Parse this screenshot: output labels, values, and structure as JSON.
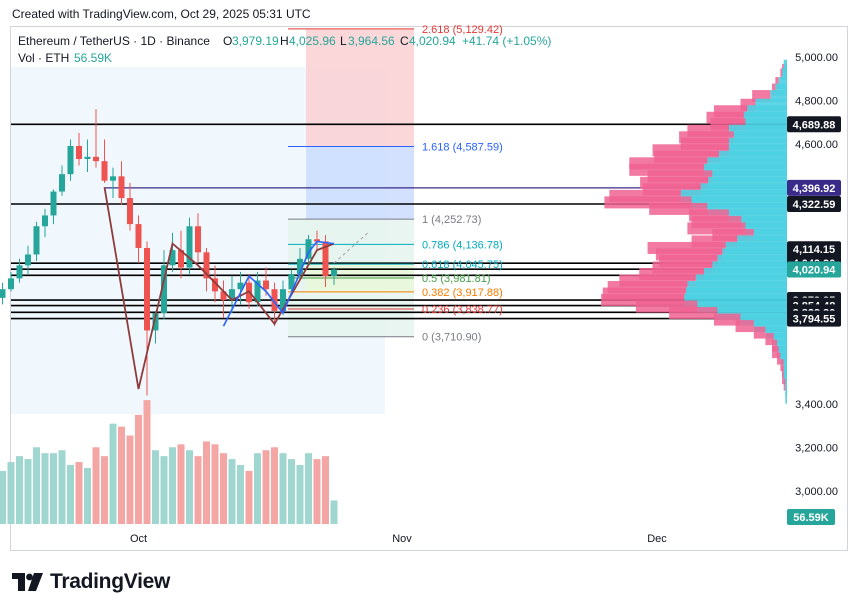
{
  "header": {
    "created": "Created with TradingView.com, Oct 29, 2025 05:31 UTC",
    "symbol": "Ethereum / TetherUS · 1D · Binance",
    "o_label": "O",
    "o_value": "3,979.19",
    "h_label": "H",
    "h_value": "4,025.96",
    "l_label": "L",
    "l_value": "3,964.56",
    "c_label": "C",
    "c_value": "4,020.94",
    "change": "+41.74 (+1.05%)",
    "vol_label": "Vol · ETH",
    "vol_value": "56.59K"
  },
  "brand": {
    "name": "TradingView"
  },
  "colors": {
    "up": "#26a69a",
    "down": "#ef5350",
    "vol_up": "#9fd6cf",
    "vol_down": "#f4a6a5",
    "vp_cyan": "#4dd0e1",
    "vp_pink": "#f06292",
    "fib_blue": "#2962ff",
    "fib_teal": "#00acc1",
    "fib_green": "#43a047",
    "fib_orange": "#f57c00",
    "fib_red": "#e53935",
    "fib_gray": "#787b86"
  },
  "chart_data": {
    "type": "candlestick",
    "y_range": [
      3140,
      5110
    ],
    "volume_range": [
      0,
      400
    ],
    "x_ticks": [
      {
        "label": "Oct",
        "day": 31
      },
      {
        "label": "Nov",
        "day": 62
      },
      {
        "label": "Dec",
        "day": 92
      }
    ],
    "y_ticks": [
      "5,000.00",
      "4,800.00",
      "4,600.00",
      "3,400.00",
      "3,200.00",
      "3,000.00"
    ],
    "y_tick_values": [
      5000,
      4800,
      4600,
      3400,
      3200,
      3000
    ],
    "price_labels": [
      {
        "label": "4,689.88",
        "value": 4689.88,
        "style": "dark"
      },
      {
        "label": "4,396.92",
        "value": 4396.92,
        "style": "navy"
      },
      {
        "label": "4,322.59",
        "value": 4322.59,
        "style": "dark"
      },
      {
        "label": "4,114.15",
        "value": 4114.15,
        "style": "dark"
      },
      {
        "label": "4,049.90",
        "value": 4049.9,
        "style": "dark"
      },
      {
        "label": "4,022.08",
        "value": 4022.08,
        "style": "dark"
      },
      {
        "label": "4,020.94",
        "value": 4020.94,
        "style": "green"
      },
      {
        "label": "3,879.95",
        "value": 3879.95,
        "style": "dark"
      },
      {
        "label": "3,854.48",
        "value": 3854.48,
        "style": "dark"
      },
      {
        "label": "3,823.30",
        "value": 3823.3,
        "style": "dark"
      },
      {
        "label": "3,794.55",
        "value": 3794.55,
        "style": "dark"
      }
    ],
    "volume_label": "56.59K",
    "horizontal_levels": [
      4689.88,
      4322.59,
      4049.9,
      4022.08,
      3994.0,
      3879.95,
      3854.48,
      3823.3,
      3794.55
    ],
    "navy_line": {
      "value": 4396.92,
      "from_day": 27
    },
    "fib_levels": [
      {
        "ratio": "2.618",
        "value": "5,129.42",
        "v": 5129.42,
        "color": "fib_red"
      },
      {
        "ratio": "1.618",
        "value": "4,587.59",
        "v": 4587.59,
        "color": "fib_blue"
      },
      {
        "ratio": "1",
        "value": "4,252.73",
        "v": 4252.73,
        "color": "fib_gray"
      },
      {
        "ratio": "0.786",
        "value": "4,136.78",
        "v": 4136.78,
        "color": "fib_teal"
      },
      {
        "ratio": "0.618",
        "value": "4,045.75",
        "v": 4045.75,
        "color": "fib_teal"
      },
      {
        "ratio": "0.5",
        "value": "3,981.81",
        "v": 3981.81,
        "color": "fib_green"
      },
      {
        "ratio": "0.382",
        "value": "3,917.88",
        "v": 3917.88,
        "color": "fib_orange"
      },
      {
        "ratio": "0.236",
        "value": "3,838.77",
        "v": 3838.77,
        "color": "fib_red"
      },
      {
        "ratio": "0",
        "value": "3,710.90",
        "v": 3710.9,
        "color": "fib_gray"
      }
    ],
    "candles": [
      [
        4370,
        4450,
        4320,
        4420
      ],
      [
        4420,
        4470,
        4360,
        4380
      ],
      [
        4380,
        4430,
        4340,
        4400
      ],
      [
        4400,
        4500,
        4370,
        4460
      ],
      [
        4460,
        4520,
        4410,
        4430
      ],
      [
        4430,
        4490,
        4380,
        4470
      ],
      [
        4470,
        4480,
        4340,
        4360
      ],
      [
        4360,
        4390,
        4270,
        4300
      ],
      [
        4300,
        4330,
        3990,
        4080
      ],
      [
        4080,
        4130,
        4000,
        4060
      ],
      [
        4060,
        4100,
        3980,
        4020
      ],
      [
        4020,
        4050,
        3900,
        3960
      ],
      [
        3960,
        3970,
        3790,
        3830
      ],
      [
        3830,
        3920,
        3800,
        3890
      ],
      [
        3890,
        3960,
        3860,
        3930
      ],
      [
        3930,
        4010,
        3920,
        3980
      ],
      [
        3980,
        4070,
        3960,
        4040
      ],
      [
        4040,
        4130,
        4000,
        4090
      ],
      [
        4090,
        4240,
        4060,
        4220
      ],
      [
        4220,
        4300,
        4170,
        4270
      ],
      [
        4270,
        4390,
        4230,
        4380
      ],
      [
        4380,
        4500,
        4360,
        4460
      ],
      [
        4460,
        4620,
        4430,
        4590
      ],
      [
        4590,
        4650,
        4500,
        4530
      ],
      [
        4530,
        4620,
        4470,
        4540
      ],
      [
        4540,
        4760,
        4490,
        4520
      ],
      [
        4520,
        4620,
        4420,
        4430
      ],
      [
        4430,
        4490,
        4350,
        4450
      ],
      [
        4450,
        4520,
        4320,
        4350
      ],
      [
        4350,
        4420,
        4200,
        4230
      ],
      [
        4230,
        4270,
        4050,
        4120
      ],
      [
        4120,
        4150,
        3440,
        3740
      ],
      [
        3740,
        3830,
        3680,
        3820
      ],
      [
        3820,
        4110,
        3790,
        4040
      ],
      [
        4040,
        4190,
        4010,
        4110
      ],
      [
        4110,
        4200,
        3980,
        4030
      ],
      [
        4030,
        4260,
        4000,
        4220
      ],
      [
        4220,
        4280,
        4050,
        4100
      ],
      [
        4100,
        4120,
        3920,
        3980
      ],
      [
        3980,
        4040,
        3870,
        3920
      ],
      [
        3920,
        3970,
        3800,
        3880
      ],
      [
        3880,
        3990,
        3820,
        3930
      ],
      [
        3930,
        4010,
        3860,
        3960
      ],
      [
        3960,
        4000,
        3840,
        3870
      ],
      [
        3870,
        4010,
        3850,
        3970
      ],
      [
        3970,
        4030,
        3900,
        3930
      ],
      [
        3930,
        3960,
        3760,
        3830
      ],
      [
        3830,
        3970,
        3810,
        3930
      ],
      [
        3930,
        4020,
        3910,
        4000
      ],
      [
        4000,
        4120,
        3970,
        4070
      ],
      [
        4070,
        4180,
        4040,
        4160
      ],
      [
        4160,
        4200,
        4110,
        4150
      ],
      [
        4150,
        4180,
        3940,
        3990
      ],
      [
        3990,
        4030,
        3950,
        4021
      ]
    ],
    "volumes": [
      150,
      130,
      145,
      125,
      140,
      110,
      125,
      120,
      240,
      260,
      220,
      210,
      190,
      200,
      180,
      210,
      230,
      220,
      260,
      240,
      240,
      250,
      200,
      210,
      190,
      260,
      230,
      340,
      330,
      300,
      370,
      420,
      250,
      230,
      260,
      270,
      250,
      230,
      280,
      270,
      240,
      220,
      200,
      180,
      240,
      250,
      260,
      240,
      220,
      200,
      240,
      220,
      230,
      80
    ],
    "volume_profile": [
      {
        "p": 4960,
        "up": 4,
        "dn": 0
      },
      {
        "p": 4940,
        "up": 4,
        "dn": 2
      },
      {
        "p": 4920,
        "up": 6,
        "dn": 2
      },
      {
        "p": 4880,
        "up": 10,
        "dn": 4
      },
      {
        "p": 4850,
        "up": 14,
        "dn": 4
      },
      {
        "p": 4820,
        "up": 20,
        "dn": 22
      },
      {
        "p": 4780,
        "up": 38,
        "dn": 18
      },
      {
        "p": 4750,
        "up": 48,
        "dn": 40
      },
      {
        "p": 4720,
        "up": 52,
        "dn": 45
      },
      {
        "p": 4690,
        "up": 50,
        "dn": 42
      },
      {
        "p": 4660,
        "up": 70,
        "dn": 50
      },
      {
        "p": 4630,
        "up": 64,
        "dn": 66
      },
      {
        "p": 4600,
        "up": 70,
        "dn": 58
      },
      {
        "p": 4570,
        "up": 70,
        "dn": 92
      },
      {
        "p": 4540,
        "up": 82,
        "dn": 78
      },
      {
        "p": 4510,
        "up": 96,
        "dn": 94
      },
      {
        "p": 4480,
        "up": 100,
        "dn": 90
      },
      {
        "p": 4450,
        "up": 90,
        "dn": 78
      },
      {
        "p": 4420,
        "up": 95,
        "dn": 82
      },
      {
        "p": 4390,
        "up": 104,
        "dn": 70
      },
      {
        "p": 4360,
        "up": 128,
        "dn": 86
      },
      {
        "p": 4330,
        "up": 115,
        "dn": 105
      },
      {
        "p": 4300,
        "up": 96,
        "dn": 70
      },
      {
        "p": 4270,
        "up": 70,
        "dn": 48
      },
      {
        "p": 4240,
        "up": 55,
        "dn": 60
      },
      {
        "p": 4210,
        "up": 50,
        "dn": 70
      },
      {
        "p": 4180,
        "up": 40,
        "dn": 50
      },
      {
        "p": 4150,
        "up": 60,
        "dn": 55
      },
      {
        "p": 4120,
        "up": 74,
        "dn": 94
      },
      {
        "p": 4090,
        "up": 78,
        "dn": 80
      },
      {
        "p": 4060,
        "up": 84,
        "dn": 70
      },
      {
        "p": 4030,
        "up": 90,
        "dn": 72
      },
      {
        "p": 4000,
        "up": 100,
        "dn": 78
      },
      {
        "p": 3970,
        "up": 110,
        "dn": 92
      },
      {
        "p": 3940,
        "up": 120,
        "dn": 96
      },
      {
        "p": 3910,
        "up": 122,
        "dn": 100
      },
      {
        "p": 3880,
        "up": 124,
        "dn": 100
      },
      {
        "p": 3850,
        "up": 108,
        "dn": 74
      },
      {
        "p": 3820,
        "up": 84,
        "dn": 58
      },
      {
        "p": 3790,
        "up": 56,
        "dn": 32
      },
      {
        "p": 3760,
        "up": 40,
        "dn": 22
      },
      {
        "p": 3730,
        "up": 26,
        "dn": 14
      },
      {
        "p": 3700,
        "up": 16,
        "dn": 10
      },
      {
        "p": 3670,
        "up": 12,
        "dn": 6
      },
      {
        "p": 3640,
        "up": 10,
        "dn": 8
      },
      {
        "p": 3610,
        "up": 8,
        "dn": 4
      },
      {
        "p": 3580,
        "up": 4,
        "dn": 4
      },
      {
        "p": 3550,
        "up": 4,
        "dn": 2
      },
      {
        "p": 3520,
        "up": 4,
        "dn": 2
      },
      {
        "p": 3490,
        "up": 2,
        "dn": 2
      },
      {
        "p": 3460,
        "up": 2,
        "dn": 0
      },
      {
        "p": 3430,
        "up": 2,
        "dn": 0
      }
    ],
    "zigzag_red": [
      [
        27,
        4400
      ],
      [
        31,
        3470
      ],
      [
        35,
        4140
      ],
      [
        38,
        4040
      ],
      [
        42,
        3880
      ],
      [
        44,
        3920
      ],
      [
        47,
        3770
      ],
      [
        52,
        4110
      ],
      [
        54,
        4140
      ]
    ],
    "zigzag_blue": [
      [
        41,
        3760
      ],
      [
        44,
        3990
      ],
      [
        46,
        3920
      ],
      [
        48,
        3820
      ],
      [
        51,
        4100
      ],
      [
        52,
        4150
      ],
      [
        54,
        4140
      ]
    ],
    "projection": {
      "from_day": 54,
      "from_v": 4050,
      "to_day": 58,
      "to_v": 4190
    }
  }
}
